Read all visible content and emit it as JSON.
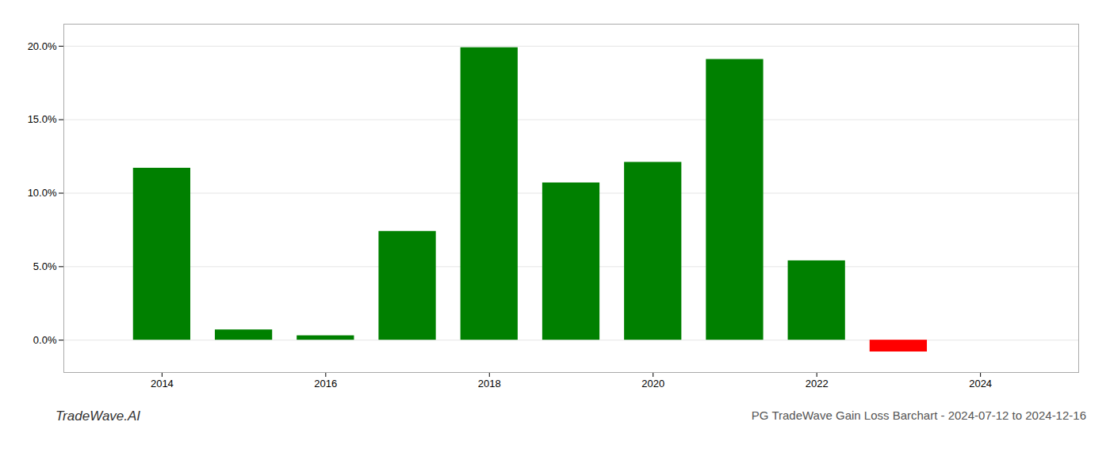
{
  "chart_data": {
    "type": "bar",
    "title": "PG TradeWave Gain Loss Barchart - 2024-07-12 to 2024-12-16",
    "annotations": [
      "TradeWave.AI"
    ],
    "x": [
      2014,
      2015,
      2016,
      2017,
      2018,
      2019,
      2020,
      2021,
      2022,
      2023
    ],
    "values": [
      0.117,
      0.007,
      0.003,
      0.074,
      0.199,
      0.107,
      0.121,
      0.191,
      0.054,
      -0.008
    ],
    "colors": [
      "#008000",
      "#008000",
      "#008000",
      "#008000",
      "#008000",
      "#008000",
      "#008000",
      "#008000",
      "#008000",
      "#ff0000"
    ],
    "xlim": [
      2012.8,
      2025.2
    ],
    "xticks": [
      2014,
      2016,
      2018,
      2020,
      2022,
      2024
    ],
    "ylim": [
      -0.022,
      0.215
    ],
    "yticks": [
      {
        "value": 0.0,
        "label": "0.0%"
      },
      {
        "value": 0.05,
        "label": "5.0%"
      },
      {
        "value": 0.1,
        "label": "10.0%"
      },
      {
        "value": 0.15,
        "label": "15.0%"
      },
      {
        "value": 0.2,
        "label": "20.0%"
      }
    ],
    "grid": true
  }
}
